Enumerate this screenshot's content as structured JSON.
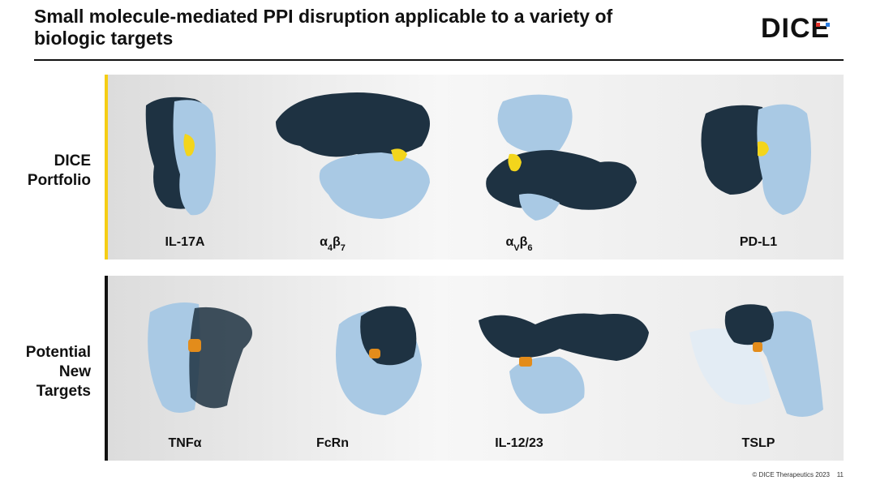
{
  "header": {
    "title": [
      "Small molecule-mediated PPI disruption applicable to a variety of",
      "biologic targets"
    ],
    "logo": "DICE"
  },
  "rows": [
    {
      "label": [
        "DICE",
        "Portfolio"
      ],
      "targets": [
        {
          "parts": [
            {
              "text": "IL-17A"
            }
          ]
        },
        {
          "parts": [
            {
              "text": "α",
              "sub": "4"
            },
            {
              "text": "β",
              "sub": "7"
            }
          ]
        },
        {
          "parts": [
            {
              "text": "α",
              "sub": "V"
            },
            {
              "text": "β",
              "sub": "6"
            }
          ]
        },
        {
          "parts": [
            {
              "text": "PD-L1"
            }
          ]
        }
      ]
    },
    {
      "label": [
        "Potential",
        "New",
        "Targets"
      ],
      "targets": [
        {
          "parts": [
            {
              "text": "TNFα"
            }
          ]
        },
        {
          "parts": [
            {
              "text": "FcRn"
            }
          ]
        },
        {
          "parts": [
            {
              "text": "IL-12/23"
            }
          ]
        },
        {
          "parts": [
            {
              "text": "TSLP"
            }
          ]
        }
      ]
    }
  ],
  "footer": {
    "copyright": "© DICE Therapeutics 2023",
    "page": "11"
  }
}
